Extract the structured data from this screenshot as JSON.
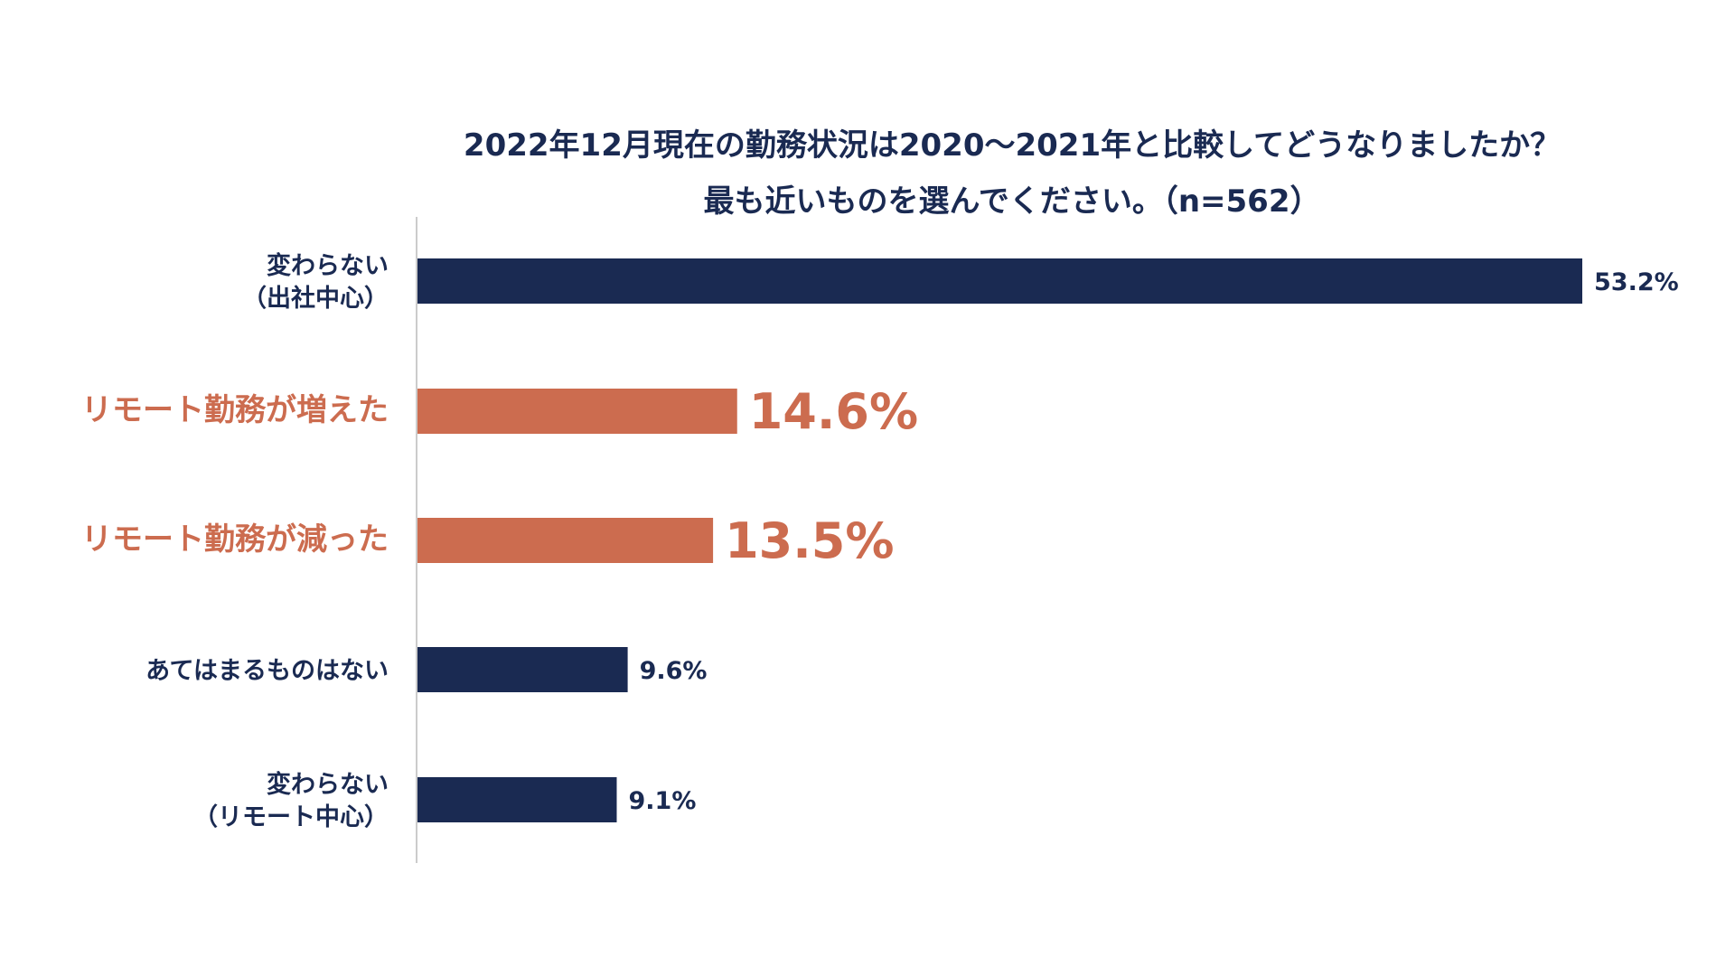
{
  "chart_data": {
    "type": "bar",
    "orientation": "horizontal",
    "title": [
      "2022年12月現在の勤務状況は2020〜2021年と比較してどうなりましたか？",
      "最も近いものを選んでください。（n=562）"
    ],
    "categories": [
      [
        "変わらない",
        "（出社中心）"
      ],
      [
        "リモート勤務が増えた"
      ],
      [
        "リモート勤務が減った"
      ],
      [
        "あてはまるものはない"
      ],
      [
        "変わらない",
        "（リモート中心）"
      ]
    ],
    "values": [
      53.2,
      14.6,
      13.5,
      9.6,
      9.1
    ],
    "value_labels": [
      "53.2%",
      "14.6%",
      "13.5%",
      "9.6%",
      "9.1%"
    ],
    "highlighted": [
      false,
      true,
      true,
      false,
      false
    ],
    "xlim": [
      0,
      53.2
    ],
    "grid": false,
    "legend": "none"
  },
  "colors": {
    "default_bar": "#1a2a52",
    "highlight_bar": "#cc6c4f",
    "axis": "#cccccc"
  }
}
